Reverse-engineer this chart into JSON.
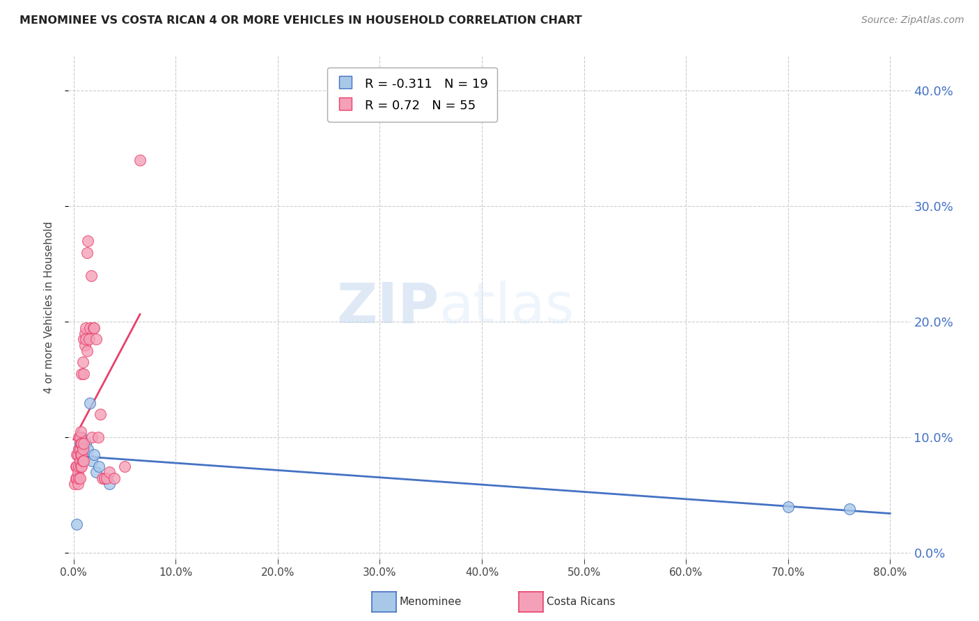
{
  "title": "MENOMINEE VS COSTA RICAN 4 OR MORE VEHICLES IN HOUSEHOLD CORRELATION CHART",
  "source": "Source: ZipAtlas.com",
  "ylabel": "4 or more Vehicles in Household",
  "xlim": [
    -0.005,
    0.82
  ],
  "ylim": [
    -0.005,
    0.43
  ],
  "xticks": [
    0.0,
    0.1,
    0.2,
    0.3,
    0.4,
    0.5,
    0.6,
    0.7,
    0.8
  ],
  "yticks": [
    0.0,
    0.1,
    0.2,
    0.3,
    0.4
  ],
  "menominee_color": "#a8c8e8",
  "costa_rican_color": "#f4a0b8",
  "menominee_line_color": "#4472c4",
  "costa_rican_line_color": "#e8406a",
  "menominee_R": -0.311,
  "menominee_N": 19,
  "costa_rican_R": 0.72,
  "costa_rican_N": 55,
  "watermark_zip": "ZIP",
  "watermark_atlas": "atlas",
  "menominee_x": [
    0.003,
    0.004,
    0.005,
    0.006,
    0.007,
    0.008,
    0.009,
    0.01,
    0.012,
    0.014,
    0.016,
    0.018,
    0.02,
    0.022,
    0.025,
    0.03,
    0.035,
    0.7,
    0.76
  ],
  "menominee_y": [
    0.025,
    0.085,
    0.09,
    0.095,
    0.09,
    0.1,
    0.09,
    0.09,
    0.095,
    0.09,
    0.13,
    0.08,
    0.085,
    0.07,
    0.075,
    0.065,
    0.06,
    0.04,
    0.038
  ],
  "costa_rican_x": [
    0.001,
    0.002,
    0.002,
    0.003,
    0.003,
    0.003,
    0.004,
    0.004,
    0.004,
    0.005,
    0.005,
    0.005,
    0.005,
    0.006,
    0.006,
    0.006,
    0.006,
    0.007,
    0.007,
    0.007,
    0.007,
    0.008,
    0.008,
    0.008,
    0.008,
    0.009,
    0.009,
    0.009,
    0.01,
    0.01,
    0.01,
    0.01,
    0.011,
    0.011,
    0.012,
    0.012,
    0.013,
    0.013,
    0.014,
    0.015,
    0.016,
    0.017,
    0.018,
    0.019,
    0.02,
    0.022,
    0.024,
    0.026,
    0.028,
    0.03,
    0.032,
    0.035,
    0.04,
    0.05,
    0.065
  ],
  "costa_rican_y": [
    0.06,
    0.065,
    0.075,
    0.065,
    0.075,
    0.085,
    0.06,
    0.07,
    0.085,
    0.065,
    0.075,
    0.09,
    0.1,
    0.065,
    0.08,
    0.09,
    0.1,
    0.075,
    0.085,
    0.095,
    0.105,
    0.075,
    0.085,
    0.095,
    0.155,
    0.08,
    0.09,
    0.165,
    0.08,
    0.095,
    0.155,
    0.185,
    0.18,
    0.19,
    0.185,
    0.195,
    0.175,
    0.26,
    0.27,
    0.185,
    0.195,
    0.24,
    0.1,
    0.195,
    0.195,
    0.185,
    0.1,
    0.12,
    0.065,
    0.065,
    0.065,
    0.07,
    0.065,
    0.075,
    0.34
  ],
  "cr_line_x": [
    0.0,
    0.065
  ],
  "men_line_x": [
    0.0,
    0.8
  ]
}
